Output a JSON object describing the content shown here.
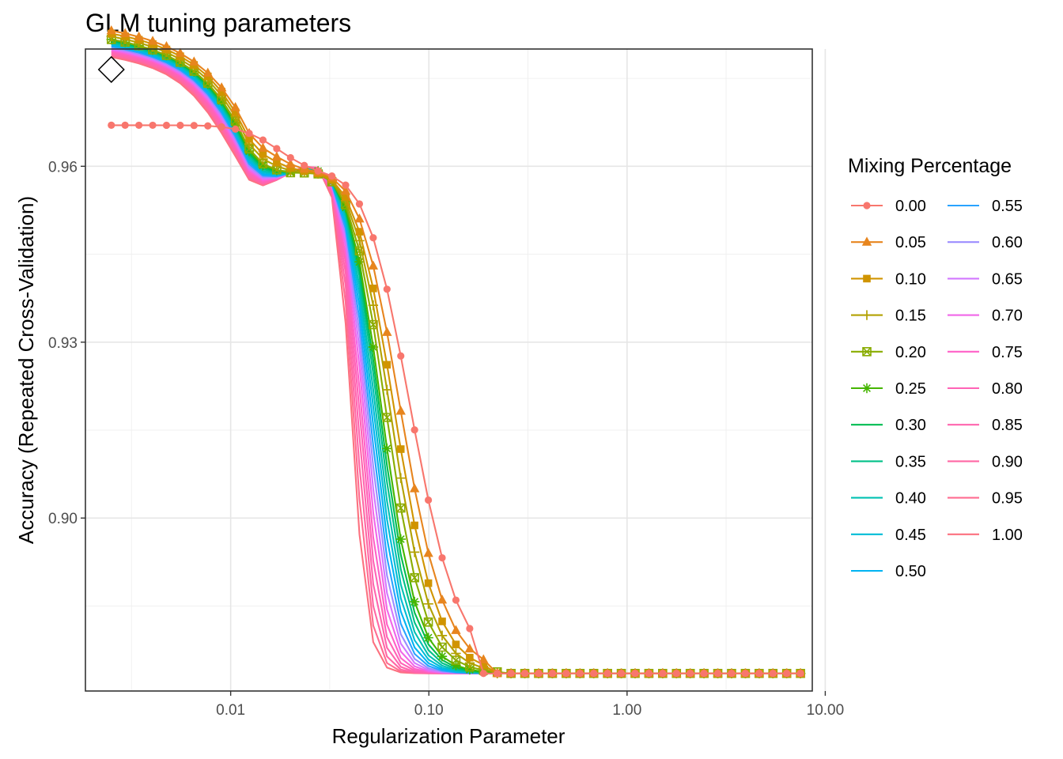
{
  "chart_data": {
    "type": "line",
    "title": "GLM tuning parameters",
    "xlabel": "Regularization Parameter",
    "ylabel": "Accuracy (Repeated Cross-Validation)",
    "x_scale": "log10",
    "xlim": [
      0.00185,
      8.6
    ],
    "ylim": [
      0.8705,
      0.98
    ],
    "x_ticks": [
      0.01,
      0.1,
      1,
      10
    ],
    "x_tick_labels": [
      "0.01",
      "0.10",
      "1.00",
      "10.00"
    ],
    "y_ticks": [
      0.9,
      0.93,
      0.96
    ],
    "y_tick_labels": [
      "0.90",
      "0.93",
      "0.96"
    ],
    "grid": true,
    "legend": {
      "title": "Mixing Percentage",
      "position": "right",
      "columns": 2
    },
    "lambda_range": [
      0.0025,
      7.5
    ],
    "lambda_points": 51,
    "best_point": {
      "x": 0.0025,
      "y": 0.9765
    },
    "series": [
      {
        "name": "0.00",
        "color": "#F8766D",
        "marker": "circle",
        "plateau": 0.967,
        "end": 0.8735,
        "mid": 0.0794,
        "width": 0.38,
        "drop": 0.55
      },
      {
        "name": "0.05",
        "color": "#E7851E",
        "marker": "triangle",
        "plateau": 0.9665,
        "end": 0.8735,
        "mid": 0.0708,
        "width": 0.35,
        "drop": 0.8
      },
      {
        "name": "0.10",
        "color": "#D09400",
        "marker": "square",
        "plateau": 0.966,
        "end": 0.8735,
        "mid": 0.0661,
        "width": 0.33,
        "drop": 0.85
      },
      {
        "name": "0.15",
        "color": "#B2A100",
        "marker": "plus",
        "plateau": 0.9655,
        "end": 0.8735,
        "mid": 0.0631,
        "width": 0.31,
        "drop": 0.9
      },
      {
        "name": "0.20",
        "color": "#89AC00",
        "marker": "boxx",
        "plateau": 0.965,
        "end": 0.8735,
        "mid": 0.0603,
        "width": 0.29,
        "drop": 0.95
      },
      {
        "name": "0.25",
        "color": "#45B500",
        "marker": "star",
        "plateau": 0.965,
        "end": 0.8735,
        "mid": 0.0575,
        "width": 0.27,
        "drop": 1
      },
      {
        "name": "0.30",
        "color": "#00BC51",
        "marker": "none",
        "plateau": 0.9648,
        "end": 0.8735,
        "mid": 0.0562,
        "width": 0.26,
        "drop": 1.05
      },
      {
        "name": "0.35",
        "color": "#00C087",
        "marker": "none",
        "plateau": 0.9646,
        "end": 0.8735,
        "mid": 0.055,
        "width": 0.25,
        "drop": 1.1
      },
      {
        "name": "0.40",
        "color": "#00C0B2",
        "marker": "none",
        "plateau": 0.9644,
        "end": 0.8735,
        "mid": 0.0537,
        "width": 0.24,
        "drop": 1.15
      },
      {
        "name": "0.45",
        "color": "#00BCD6",
        "marker": "none",
        "plateau": 0.9642,
        "end": 0.8735,
        "mid": 0.0525,
        "width": 0.23,
        "drop": 1.2
      },
      {
        "name": "0.50",
        "color": "#00B3F2",
        "marker": "none",
        "plateau": 0.964,
        "end": 0.8735,
        "mid": 0.0513,
        "width": 0.22,
        "drop": 1.25
      },
      {
        "name": "0.55",
        "color": "#29A3FF",
        "marker": "none",
        "plateau": 0.9638,
        "end": 0.8735,
        "mid": 0.0501,
        "width": 0.21,
        "drop": 1.3
      },
      {
        "name": "0.60",
        "color": "#9C8DFF",
        "marker": "none",
        "plateau": 0.9636,
        "end": 0.8735,
        "mid": 0.049,
        "width": 0.2,
        "drop": 1.35
      },
      {
        "name": "0.65",
        "color": "#D277FF",
        "marker": "none",
        "plateau": 0.9634,
        "end": 0.8735,
        "mid": 0.0479,
        "width": 0.19,
        "drop": 1.4
      },
      {
        "name": "0.70",
        "color": "#F166E8",
        "marker": "none",
        "plateau": 0.9632,
        "end": 0.8735,
        "mid": 0.0468,
        "width": 0.18,
        "drop": 1.45
      },
      {
        "name": "0.75",
        "color": "#FF61C7",
        "marker": "none",
        "plateau": 0.963,
        "end": 0.8735,
        "mid": 0.0457,
        "width": 0.17,
        "drop": 1.5
      },
      {
        "name": "0.80",
        "color": "#FF63B6",
        "marker": "none",
        "plateau": 0.9628,
        "end": 0.8735,
        "mid": 0.0447,
        "width": 0.16,
        "drop": 1.55
      },
      {
        "name": "0.85",
        "color": "#FF65AE",
        "marker": "none",
        "plateau": 0.9626,
        "end": 0.8735,
        "mid": 0.0437,
        "width": 0.15,
        "drop": 1.6
      },
      {
        "name": "0.90",
        "color": "#FF67A4",
        "marker": "none",
        "plateau": 0.9624,
        "end": 0.8735,
        "mid": 0.0427,
        "width": 0.14,
        "drop": 1.65
      },
      {
        "name": "0.95",
        "color": "#FF6C91",
        "marker": "none",
        "plateau": 0.9622,
        "end": 0.8735,
        "mid": 0.0417,
        "width": 0.13,
        "drop": 1.7
      },
      {
        "name": "1.00",
        "color": "#FC717F",
        "marker": "none",
        "plateau": 0.962,
        "end": 0.8735,
        "mid": 0.0407,
        "width": 0.12,
        "drop": 1.75
      }
    ]
  }
}
